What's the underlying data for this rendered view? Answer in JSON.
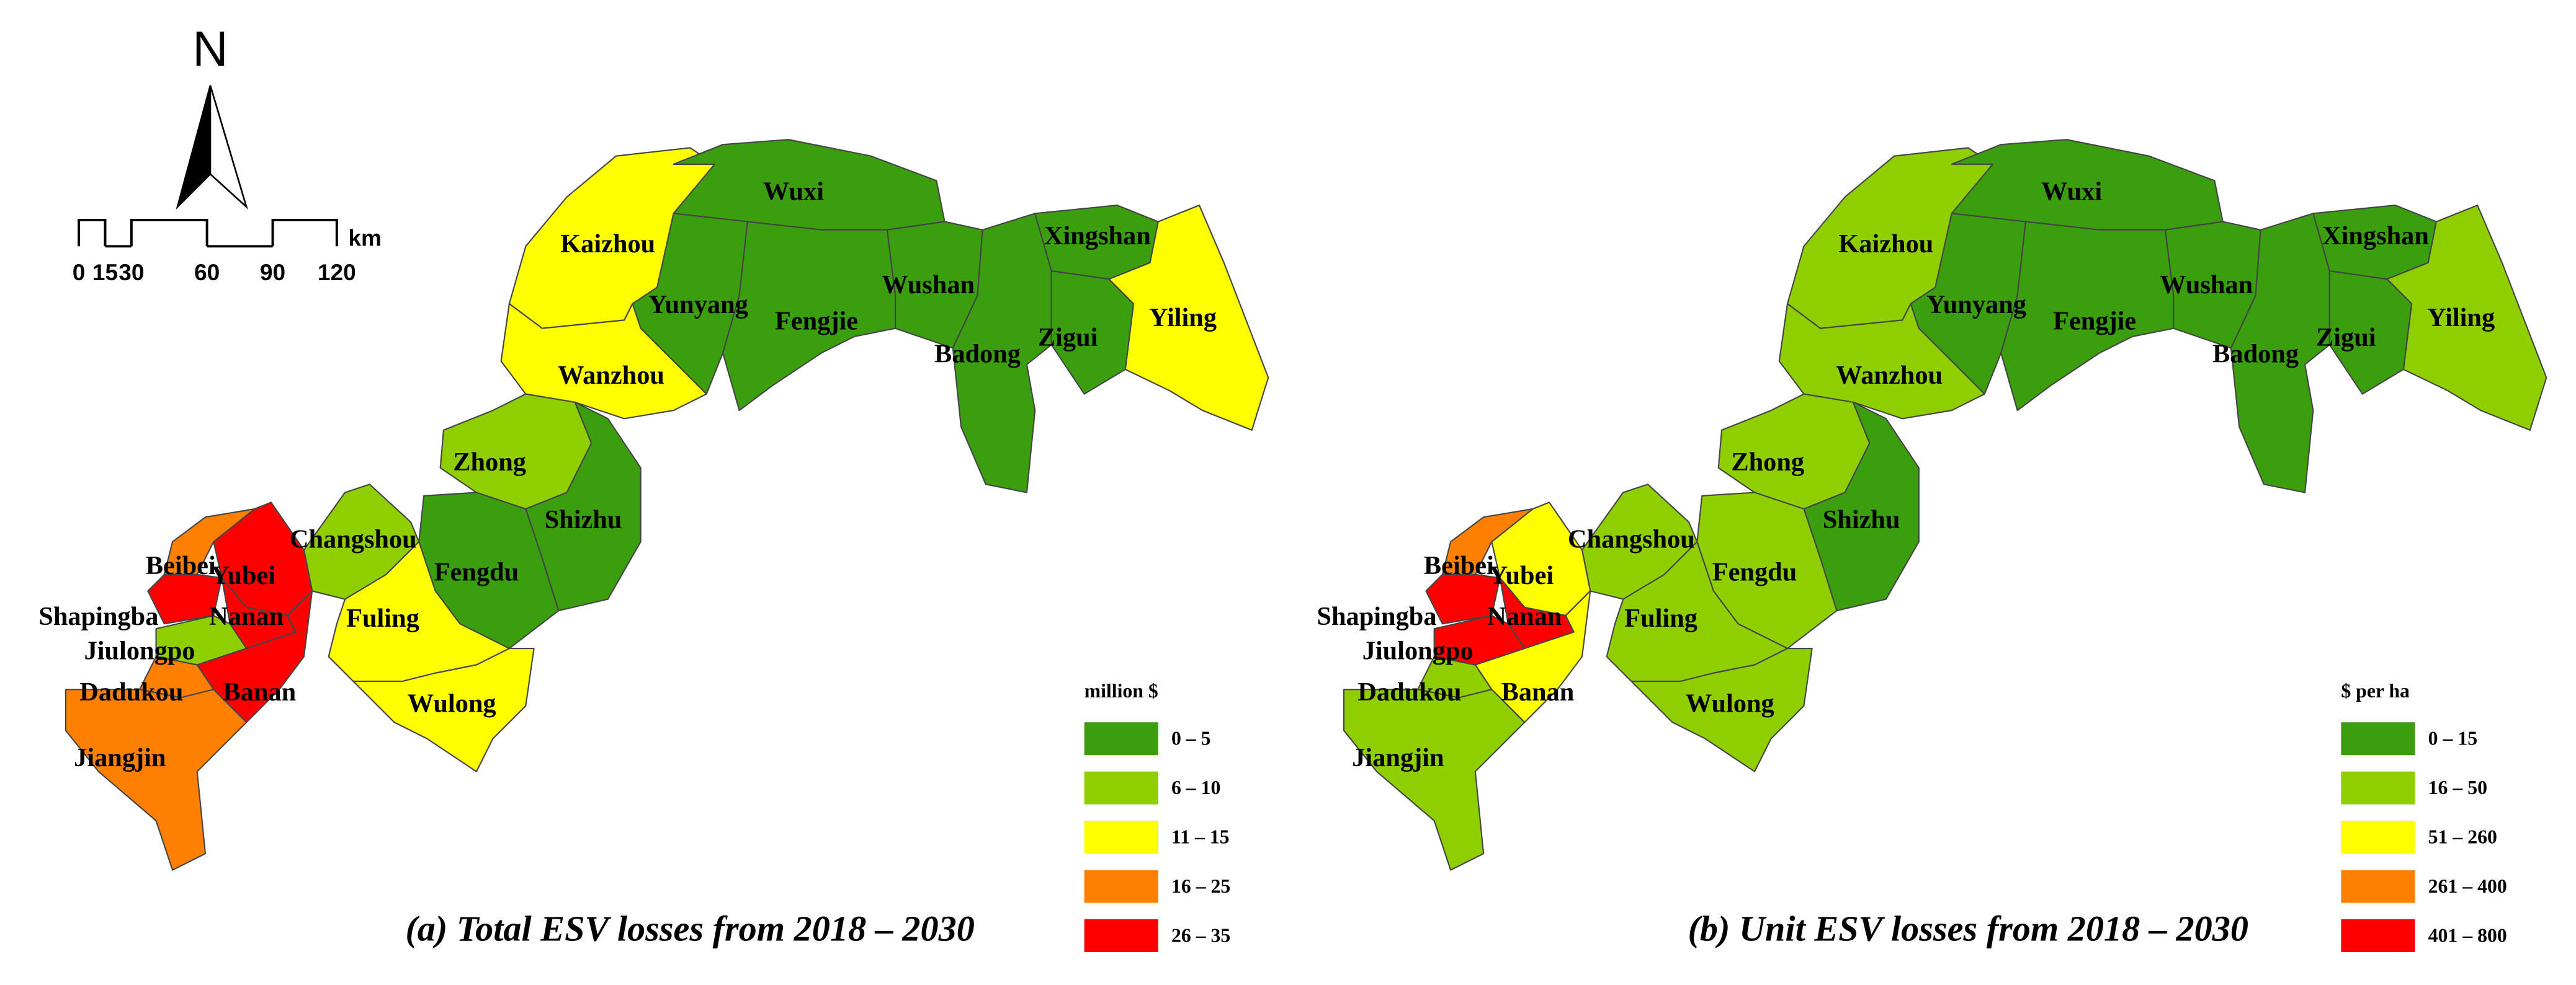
{
  "north": "N",
  "scale_bar": {
    "labels": [
      0,
      15,
      30,
      60,
      90,
      120
    ],
    "unit": "km"
  },
  "maps": [
    {
      "caption": "(a) Total ESV losses from 2018 – 2030",
      "legend": {
        "title": "million $",
        "items": [
          {
            "label": "0 – 5",
            "color": "#3a9e0f"
          },
          {
            "label": "6 – 10",
            "color": "#8fcf00"
          },
          {
            "label": "11 – 15",
            "color": "#ffff00"
          },
          {
            "label": "16 – 25",
            "color": "#ff8000"
          },
          {
            "label": "26 – 35",
            "color": "#ff0000"
          }
        ]
      },
      "regions": [
        {
          "name": "Kaizhou",
          "color": "#ffff00"
        },
        {
          "name": "Wuxi",
          "color": "#3a9e0f"
        },
        {
          "name": "Yunyang",
          "color": "#3a9e0f"
        },
        {
          "name": "Fengjie",
          "color": "#3a9e0f"
        },
        {
          "name": "Wushan",
          "color": "#3a9e0f"
        },
        {
          "name": "Badong",
          "color": "#3a9e0f"
        },
        {
          "name": "Xingshan",
          "color": "#3a9e0f"
        },
        {
          "name": "Zigui",
          "color": "#3a9e0f"
        },
        {
          "name": "Yiling",
          "color": "#ffff00"
        },
        {
          "name": "Wanzhou",
          "color": "#ffff00"
        },
        {
          "name": "Zhong",
          "color": "#8fcf00"
        },
        {
          "name": "Shizhu",
          "color": "#3a9e0f"
        },
        {
          "name": "Fengdu",
          "color": "#3a9e0f"
        },
        {
          "name": "Changshou",
          "color": "#8fcf00"
        },
        {
          "name": "Fuling",
          "color": "#ffff00"
        },
        {
          "name": "Wulong",
          "color": "#ffff00"
        },
        {
          "name": "Yubei",
          "color": "#ff0000"
        },
        {
          "name": "Beibei",
          "color": "#ff8000"
        },
        {
          "name": "Shapingba",
          "color": "#ff0000"
        },
        {
          "name": "Nanan",
          "color": "#ff0000"
        },
        {
          "name": "Jiulongpo",
          "color": "#8fcf00"
        },
        {
          "name": "Banan",
          "color": "#ff0000"
        },
        {
          "name": "Dadukou",
          "color": "#ff8000"
        },
        {
          "name": "Jiangjin",
          "color": "#ff8000"
        }
      ]
    },
    {
      "caption": "(b) Unit ESV losses from 2018 – 2030",
      "legend": {
        "title": "$  per ha",
        "items": [
          {
            "label": "0 – 15",
            "color": "#3a9e0f"
          },
          {
            "label": "16 – 50",
            "color": "#8fcf00"
          },
          {
            "label": "51 – 260",
            "color": "#ffff00"
          },
          {
            "label": "261 – 400",
            "color": "#ff8000"
          },
          {
            "label": "401 – 800",
            "color": "#ff0000"
          }
        ]
      },
      "regions": [
        {
          "name": "Kaizhou",
          "color": "#8fcf00"
        },
        {
          "name": "Wuxi",
          "color": "#3a9e0f"
        },
        {
          "name": "Yunyang",
          "color": "#3a9e0f"
        },
        {
          "name": "Fengjie",
          "color": "#3a9e0f"
        },
        {
          "name": "Wushan",
          "color": "#3a9e0f"
        },
        {
          "name": "Badong",
          "color": "#3a9e0f"
        },
        {
          "name": "Xingshan",
          "color": "#3a9e0f"
        },
        {
          "name": "Zigui",
          "color": "#3a9e0f"
        },
        {
          "name": "Yiling",
          "color": "#8fcf00"
        },
        {
          "name": "Wanzhou",
          "color": "#8fcf00"
        },
        {
          "name": "Zhong",
          "color": "#8fcf00"
        },
        {
          "name": "Shizhu",
          "color": "#3a9e0f"
        },
        {
          "name": "Fengdu",
          "color": "#8fcf00"
        },
        {
          "name": "Changshou",
          "color": "#8fcf00"
        },
        {
          "name": "Fuling",
          "color": "#8fcf00"
        },
        {
          "name": "Wulong",
          "color": "#8fcf00"
        },
        {
          "name": "Yubei",
          "color": "#ffff00"
        },
        {
          "name": "Beibei",
          "color": "#ff8000"
        },
        {
          "name": "Shapingba",
          "color": "#ff0000"
        },
        {
          "name": "Nanan",
          "color": "#ff0000"
        },
        {
          "name": "Jiulongpo",
          "color": "#ff0000"
        },
        {
          "name": "Banan",
          "color": "#ffff00"
        },
        {
          "name": "Dadukou",
          "color": "#8fcf00"
        },
        {
          "name": "Jiangjin",
          "color": "#8fcf00"
        }
      ]
    }
  ]
}
